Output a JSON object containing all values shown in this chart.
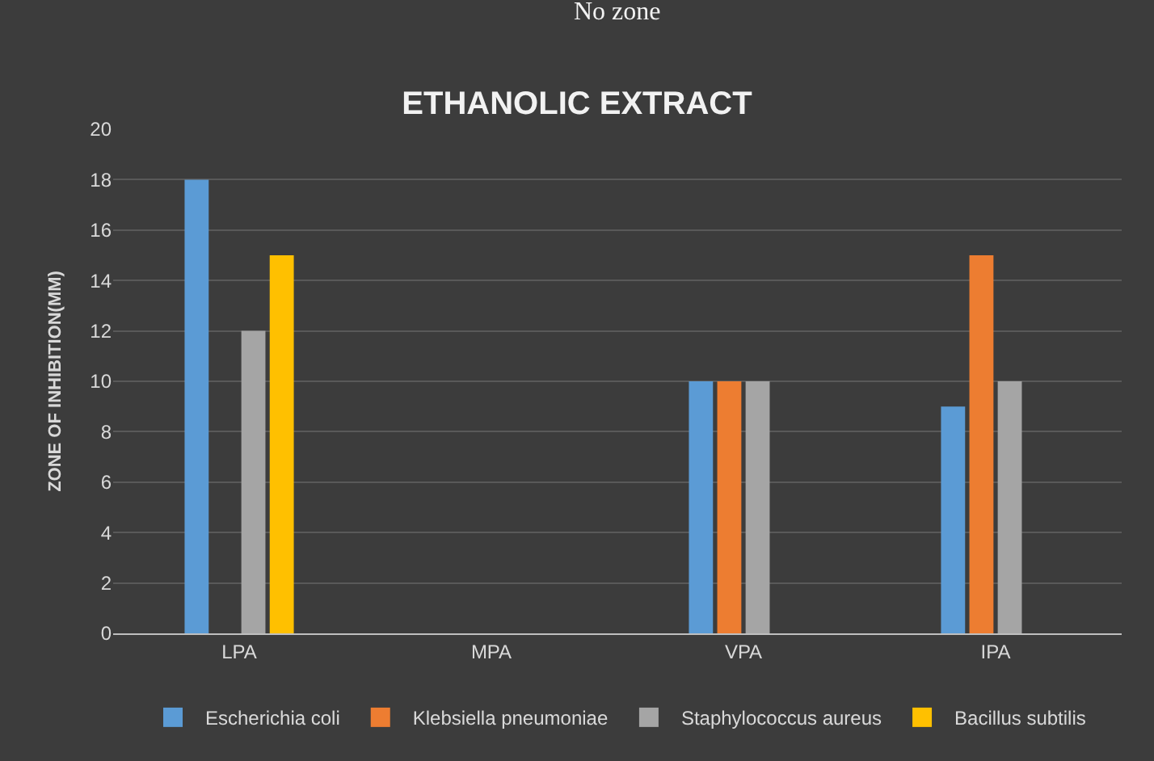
{
  "chart_data": {
    "type": "bar",
    "title": "ETHANOLIC EXTRACT",
    "ylabel": "ZONE OF INHIBITION(MM)",
    "annotations": [
      "No zone"
    ],
    "categories": [
      "LPA",
      "MPA",
      "VPA",
      "IPA"
    ],
    "series": [
      {
        "name": "Escherichia coli",
        "color": "#5b9bd5",
        "values": [
          18,
          0,
          10,
          9
        ]
      },
      {
        "name": "Klebsiella pneumoniae",
        "color": "#ed7d31",
        "values": [
          0,
          0,
          10,
          15
        ]
      },
      {
        "name": "Staphylococcus aureus",
        "color": "#a5a5a5",
        "values": [
          12,
          0,
          10,
          10
        ]
      },
      {
        "name": "Bacillus subtilis",
        "color": "#ffc000",
        "values": [
          15,
          0,
          0,
          0
        ]
      }
    ],
    "ylim": [
      0,
      20
    ],
    "yticks": [
      0,
      2,
      4,
      6,
      8,
      10,
      12,
      14,
      16,
      18,
      20
    ],
    "grid": "y",
    "legend": "bottom"
  }
}
